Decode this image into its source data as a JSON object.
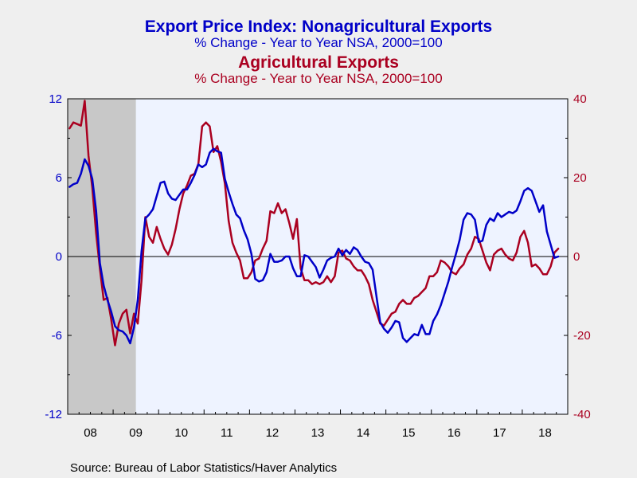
{
  "titles": {
    "title1": "Export Price Index: Nonagricultural Exports",
    "sub1": "% Change - Year to Year    NSA, 2000=100",
    "title2": "Agricultural Exports",
    "sub2": "% Change - Year to Year    NSA, 2000=100"
  },
  "source": "Source:  Bureau of Labor Statistics/Haver Analytics",
  "colors": {
    "nonagricultural": "#0000c8",
    "agricultural": "#aa0020",
    "plot_bg": "#eef3ff",
    "recession": "#c8c8c8",
    "page_bg": "#efefef"
  },
  "chart_data": {
    "type": "line",
    "x_start": "2008-01",
    "x_end": "2018-12",
    "x_tick_labels": [
      "08",
      "09",
      "10",
      "11",
      "12",
      "13",
      "14",
      "15",
      "16",
      "17",
      "18"
    ],
    "left_axis": {
      "ylim": [
        -12,
        12
      ],
      "ticks": [
        "12",
        "6",
        "0",
        "-6",
        "-12"
      ],
      "color": "#0000c8"
    },
    "right_axis": {
      "ylim": [
        -40,
        40
      ],
      "ticks": [
        "40",
        "20",
        "0",
        "-20",
        "-40"
      ],
      "color": "#aa0020"
    },
    "recession": [
      "2008-01",
      "2009-06"
    ],
    "zero_line": true,
    "series": [
      {
        "name": "Nonagricultural Exports",
        "axis": "left",
        "values": [
          5.3,
          5.5,
          5.6,
          6.3,
          7.4,
          6.9,
          5.9,
          3.5,
          -0.5,
          -2.2,
          -3.3,
          -4.2,
          -5.3,
          -5.6,
          -5.7,
          -6.0,
          -6.6,
          -5.4,
          -3.3,
          0.4,
          2.9,
          3.2,
          3.6,
          4.6,
          5.6,
          5.7,
          4.8,
          4.4,
          4.3,
          4.7,
          5.1,
          5.1,
          5.6,
          6.2,
          7.0,
          6.8,
          7.0,
          7.9,
          8.2,
          8.0,
          7.9,
          5.9,
          4.9,
          4.0,
          3.2,
          2.9,
          2.0,
          1.3,
          0.2,
          -1.7,
          -1.9,
          -1.8,
          -1.2,
          0.2,
          -0.4,
          -0.4,
          -0.3,
          0.0,
          0.0,
          -0.9,
          -1.5,
          -1.5,
          0.1,
          0.0,
          -0.4,
          -0.8,
          -1.6,
          -1.0,
          -0.3,
          -0.1,
          0.0,
          0.6,
          0.1,
          0.5,
          0.2,
          0.7,
          0.5,
          0.0,
          -0.4,
          -0.5,
          -1.0,
          -3.0,
          -5.0,
          -5.5,
          -5.8,
          -5.4,
          -4.9,
          -5.0,
          -6.2,
          -6.5,
          -6.2,
          -5.9,
          -6.0,
          -5.2,
          -5.9,
          -5.9,
          -4.9,
          -4.4,
          -3.7,
          -2.8,
          -1.9,
          -0.8,
          0.2,
          1.3,
          2.8,
          3.3,
          3.2,
          2.8,
          1.1,
          1.2,
          2.4,
          2.9,
          2.7,
          3.3,
          3.0,
          3.2,
          3.4,
          3.3,
          3.5,
          4.2,
          5.0,
          5.2,
          5.0,
          4.2,
          3.4,
          3.9,
          1.9,
          0.9,
          -0.1,
          0.0
        ]
      },
      {
        "name": "Agricultural Exports",
        "axis": "right",
        "values": [
          32.5,
          34.0,
          33.6,
          33.2,
          39.5,
          25.5,
          17.5,
          6.0,
          -3.0,
          -11.0,
          -10.5,
          -16.0,
          -22.5,
          -17.0,
          -14.5,
          -13.5,
          -19.5,
          -14.5,
          -17.0,
          -6.0,
          10.0,
          5.0,
          3.5,
          7.5,
          4.5,
          2.0,
          0.5,
          3.0,
          7.0,
          12.0,
          16.0,
          18.0,
          20.5,
          21.0,
          23.5,
          33.0,
          34.0,
          33.0,
          26.5,
          28.0,
          24.0,
          18.5,
          9.0,
          3.5,
          1.0,
          -1.0,
          -5.5,
          -5.5,
          -4.0,
          -1.0,
          -0.5,
          2.0,
          4.0,
          11.5,
          11.0,
          13.5,
          11.0,
          12.0,
          8.5,
          4.5,
          9.5,
          -3.0,
          -6.0,
          -6.0,
          -7.0,
          -6.5,
          -7.0,
          -6.5,
          -5.0,
          -6.5,
          -5.0,
          1.0,
          1.5,
          -0.5,
          -1.0,
          -2.5,
          -3.5,
          -3.5,
          -5.0,
          -7.0,
          -11.0,
          -14.0,
          -17.0,
          -17.5,
          -16.0,
          -14.5,
          -14.0,
          -12.0,
          -11.0,
          -12.0,
          -12.0,
          -10.5,
          -10.0,
          -9.0,
          -8.0,
          -5.0,
          -5.0,
          -4.0,
          -1.0,
          -1.5,
          -2.5,
          -4.0,
          -4.5,
          -3.0,
          -2.0,
          0.5,
          2.0,
          5.0,
          4.5,
          1.5,
          -1.5,
          -3.5,
          0.5,
          1.5,
          2.0,
          0.5,
          -0.5,
          -1.0,
          1.0,
          5.0,
          6.5,
          3.5,
          -2.5,
          -2.0,
          -3.0,
          -4.5,
          -4.5,
          -2.5,
          1.0,
          2.0
        ]
      }
    ]
  }
}
